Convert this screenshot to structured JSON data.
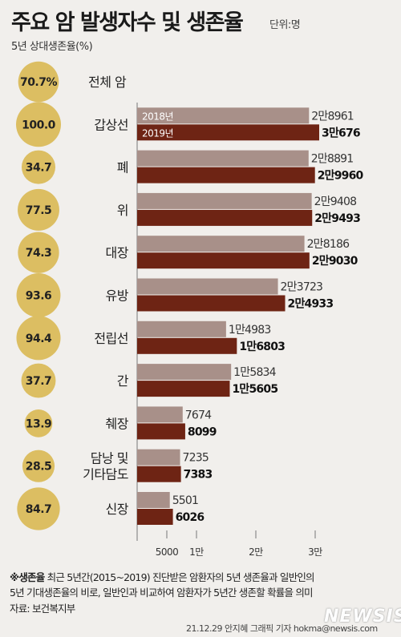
{
  "title": "주요 암 발생자수 및 생존율",
  "unit": "단위:명",
  "rate_label": "5년 상대생존율(%)",
  "chart_data": {
    "type": "bar",
    "categories": [
      "전체 암",
      "갑상선",
      "폐",
      "위",
      "대장",
      "유방",
      "전립선",
      "간",
      "췌장",
      "담낭 및 기타담도",
      "신장"
    ],
    "category_lines": [
      [
        "전체 암"
      ],
      [
        "갑상선"
      ],
      [
        "폐"
      ],
      [
        "위"
      ],
      [
        "대장"
      ],
      [
        "유방"
      ],
      [
        "전립선"
      ],
      [
        "간"
      ],
      [
        "췌장"
      ],
      [
        "담낭 및",
        "기타담도"
      ],
      [
        "신장"
      ]
    ],
    "survival_rates": [
      "70.7%",
      "100.0",
      "34.7",
      "77.5",
      "74.3",
      "93.6",
      "94.4",
      "37.7",
      "13.9",
      "28.5",
      "84.7"
    ],
    "survival_values": [
      70.7,
      100.0,
      34.7,
      77.5,
      74.3,
      93.6,
      94.4,
      37.7,
      13.9,
      28.5,
      84.7
    ],
    "series": [
      {
        "name": "2018년",
        "values": [
          null,
          28961,
          28891,
          29408,
          28186,
          23723,
          14983,
          15834,
          7674,
          7235,
          5501
        ],
        "labels": [
          null,
          "2만8961",
          "2만8891",
          "2만9408",
          "2만8186",
          "2만3723",
          "1만4983",
          "1만5834",
          "7674",
          "7235",
          "5501"
        ],
        "color": "#a89089"
      },
      {
        "name": "2019년",
        "values": [
          null,
          30676,
          29960,
          29493,
          29030,
          24933,
          16803,
          15605,
          8099,
          7383,
          6026
        ],
        "labels": [
          null,
          "3만676",
          "2만9960",
          "2만9493",
          "2만9030",
          "2만4933",
          "1만6803",
          "1만5605",
          "8099",
          "7383",
          "6026"
        ],
        "color": "#6e2414"
      }
    ],
    "x_ticks": [
      5000,
      10000,
      20000,
      30000
    ],
    "x_tick_labels": [
      "5000",
      "1만",
      "2만",
      "3만"
    ],
    "xlim": [
      0,
      30676
    ]
  },
  "footnote": {
    "line1_bold": "※생존율",
    "line1": " 최근 5년간(2015~2019) 진단받은 암환자의 5년 생존율과 일반인의",
    "line2": "5년 기대생존율의 비로, 일반인과 비교하여 암환자가 5년간 생존할 확률을 의미",
    "source": "자료: 보건복지부"
  },
  "credit": "21.12.29 안지혜 그래픽 기자 hokma@newsis.com",
  "logo": "NEWSIS",
  "colors": {
    "bubble": "#dcbe62",
    "bar2018": "#a89089",
    "bar2019": "#6e2414",
    "background": "#f1efec"
  }
}
